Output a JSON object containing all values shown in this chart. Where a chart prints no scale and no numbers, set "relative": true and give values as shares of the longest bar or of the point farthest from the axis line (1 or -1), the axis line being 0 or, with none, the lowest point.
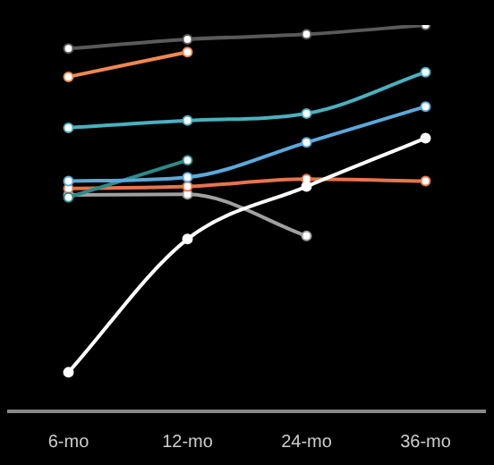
{
  "chart_data": {
    "type": "line",
    "relative": true,
    "categories": [
      "6-mo",
      "12-mo",
      "24-mo",
      "36-mo"
    ],
    "marker": "circle",
    "line_style": "solid",
    "grid": false,
    "series": [
      {
        "color": "#f0884f",
        "values": [
          0.866,
          0.93,
          null,
          null
        ]
      },
      {
        "color": "#5aa9dc",
        "values": [
          0.596,
          0.606,
          0.696,
          0.789
        ]
      },
      {
        "color": "#4ab0bf",
        "values": [
          0.734,
          0.753,
          0.771,
          0.878
        ]
      },
      {
        "color": "#2e8a8a",
        "values": [
          0.554,
          0.65,
          null,
          null
        ]
      },
      {
        "color": "#ffffff",
        "values": [
          0.101,
          0.446,
          0.582,
          0.707
        ]
      },
      {
        "color": "#e8744a",
        "values": [
          0.577,
          0.582,
          0.601,
          0.596
        ]
      },
      {
        "color": "#a0a0a0",
        "values": [
          0.56,
          0.562,
          0.454,
          null
        ]
      },
      {
        "color": "#5a5a5a",
        "values": [
          0.939,
          0.963,
          0.976,
          1
        ]
      }
    ]
  }
}
